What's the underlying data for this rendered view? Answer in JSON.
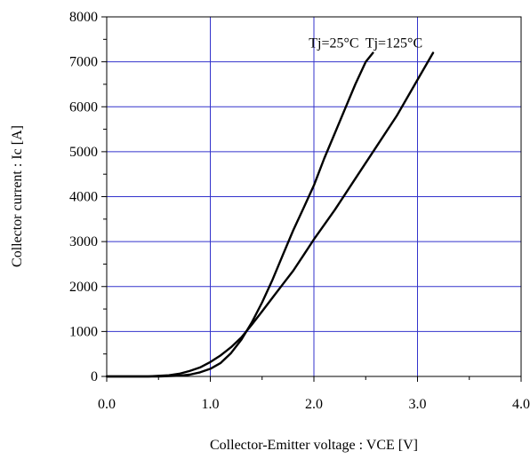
{
  "chart_data": {
    "type": "line",
    "title": "",
    "xlabel": "Collector-Emitter voltage : VCE [V]",
    "ylabel": "Collector current : Ic [A]",
    "xlim": [
      0,
      4
    ],
    "ylim": [
      0,
      8000
    ],
    "x_ticks": [
      0,
      1,
      2,
      3,
      4
    ],
    "x_tick_labels": [
      "0.0",
      "1.0",
      "2.0",
      "3.0",
      "4.0"
    ],
    "y_ticks": [
      0,
      1000,
      2000,
      3000,
      4000,
      5000,
      6000,
      7000,
      8000
    ],
    "y_tick_labels": [
      "0",
      "1000",
      "2000",
      "3000",
      "4000",
      "5000",
      "6000",
      "7000",
      "8000"
    ],
    "grid": true,
    "grid_color": "#3333cc",
    "line_color": "#000000",
    "series": [
      {
        "name": "Tj=25°C",
        "x": [
          0.0,
          0.5,
          0.7,
          0.8,
          0.9,
          1.0,
          1.1,
          1.2,
          1.3,
          1.4,
          1.5,
          1.6,
          1.7,
          1.8,
          1.9,
          2.0,
          2.1,
          2.2,
          2.3,
          2.4,
          2.5,
          2.57
        ],
        "y": [
          0,
          0,
          15,
          40,
          90,
          170,
          300,
          520,
          820,
          1200,
          1650,
          2150,
          2700,
          3250,
          3750,
          4250,
          4850,
          5400,
          5950,
          6500,
          7000,
          7200
        ]
      },
      {
        "name": "Tj=125°C",
        "x": [
          0.0,
          0.4,
          0.6,
          0.7,
          0.8,
          0.9,
          1.0,
          1.1,
          1.2,
          1.3,
          1.4,
          1.5,
          1.6,
          1.7,
          1.8,
          1.9,
          2.0,
          2.2,
          2.4,
          2.6,
          2.8,
          3.0,
          3.15
        ],
        "y": [
          0,
          0,
          25,
          60,
          120,
          200,
          320,
          470,
          650,
          870,
          1150,
          1450,
          1750,
          2050,
          2350,
          2700,
          3050,
          3700,
          4400,
          5100,
          5800,
          6600,
          7200
        ]
      }
    ]
  }
}
